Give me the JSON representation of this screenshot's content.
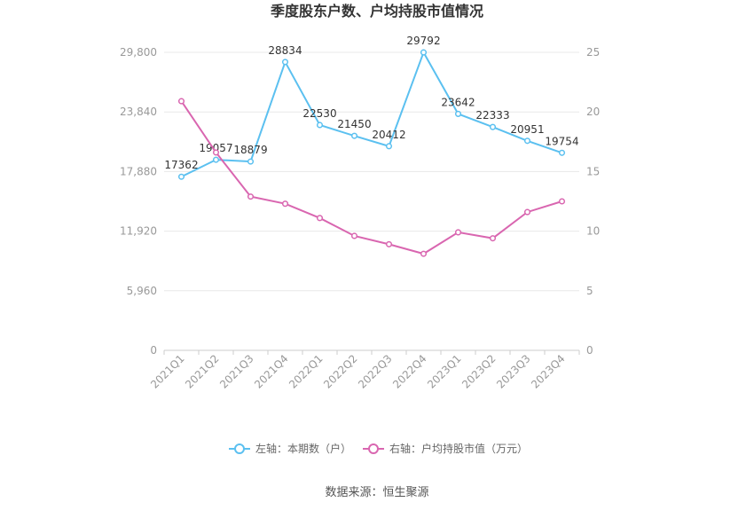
{
  "chart_data": {
    "type": "line",
    "title": "季度股东户数、户均持股市值情况",
    "categories": [
      "2021Q1",
      "2021Q2",
      "2021Q3",
      "2021Q4",
      "2022Q1",
      "2022Q2",
      "2022Q3",
      "2022Q4",
      "2023Q1",
      "2023Q2",
      "2023Q3",
      "2023Q4"
    ],
    "left_axis": {
      "ticks": [
        "0",
        "5,960",
        "11,920",
        "17,880",
        "23,840",
        "29,800"
      ],
      "ylim": [
        0,
        29800
      ]
    },
    "right_axis": {
      "ticks": [
        "0",
        "5",
        "10",
        "15",
        "20",
        "25"
      ],
      "ylim": [
        0,
        25
      ]
    },
    "series": [
      {
        "name": "左轴：本期数（户）",
        "axis": "left",
        "color": "#5bc0f0",
        "values": [
          17362,
          19057,
          18879,
          28834,
          22530,
          21450,
          20412,
          29792,
          23642,
          22333,
          20951,
          19754
        ],
        "labels": [
          "17362",
          "19057",
          "18879",
          "28834",
          "22530",
          "21450",
          "20412",
          "29792",
          "23642",
          "22333",
          "20951",
          "19754"
        ]
      },
      {
        "name": "右轴：户均持股市值（万元）",
        "axis": "right",
        "color": "#d966b0",
        "values": [
          20.9,
          16.6,
          12.9,
          12.3,
          11.1,
          9.6,
          8.9,
          8.1,
          9.9,
          9.4,
          11.6,
          12.5
        ]
      }
    ],
    "grid": true,
    "legend": "bottom"
  },
  "source": "数据来源：恒生聚源"
}
